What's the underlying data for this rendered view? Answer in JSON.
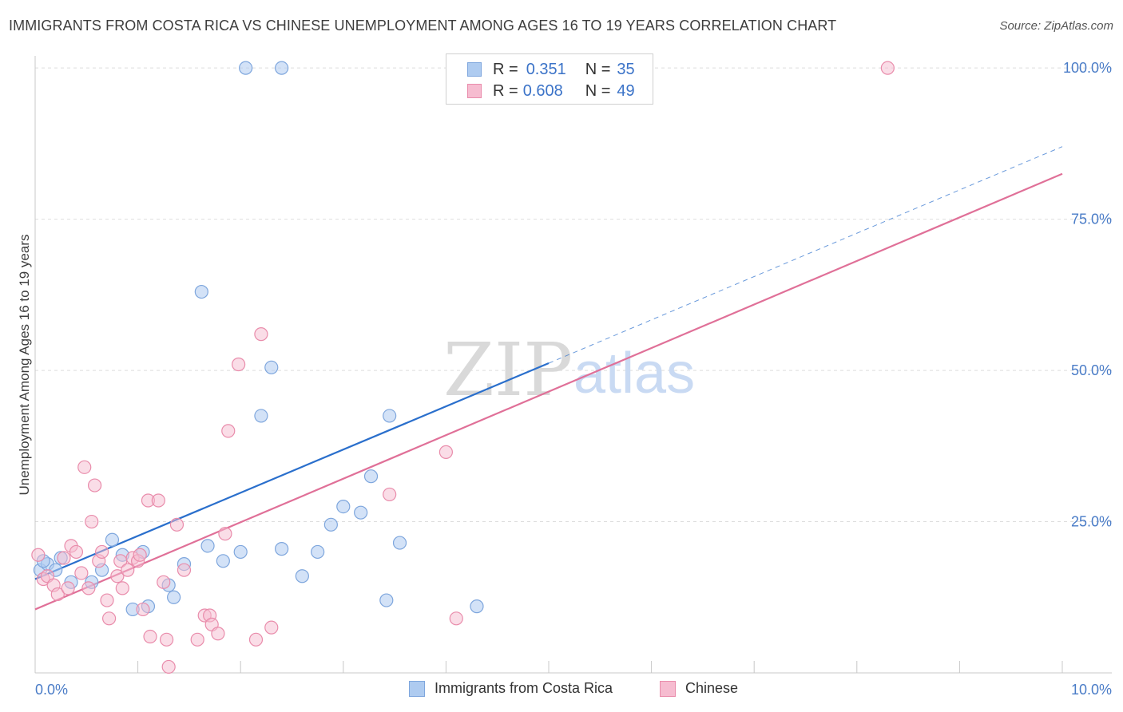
{
  "title": "IMMIGRANTS FROM COSTA RICA VS CHINESE UNEMPLOYMENT AMONG AGES 16 TO 19 YEARS CORRELATION CHART",
  "source": "Source: ZipAtlas.com",
  "watermark": {
    "zip": "ZIP",
    "atlas": "atlas"
  },
  "legend": {
    "rows": [
      {
        "r_label": "R =",
        "r_value": "0.351",
        "n_label": "N =",
        "n_value": "35"
      },
      {
        "r_label": "R =",
        "r_value": "0.608",
        "n_label": "N =",
        "n_value": "49"
      }
    ]
  },
  "bottom_legend": [
    "Immigrants from Costa Rica",
    "Chinese"
  ],
  "colors": {
    "blue_fill": "#aecbf0",
    "blue_stroke": "#7ea6dd",
    "blue_line": "#2a6fcc",
    "pink_fill": "#f6bcd0",
    "pink_stroke": "#e98cab",
    "pink_line": "#e07098",
    "grid": "#dddddd",
    "tick_text": "#4a7cc7"
  },
  "chart_data": {
    "type": "scatter",
    "title": "IMMIGRANTS FROM COSTA RICA VS CHINESE UNEMPLOYMENT AMONG AGES 16 TO 19 YEARS CORRELATION CHART",
    "xlabel": "",
    "ylabel": "Unemployment Among Ages 16 to 19 years",
    "xlim": [
      0,
      10
    ],
    "ylim": [
      0,
      102
    ],
    "x_tick_labels": [
      "0.0%",
      "10.0%"
    ],
    "y_ticks": [
      25,
      50,
      75,
      100
    ],
    "y_tick_labels": [
      "25.0%",
      "50.0%",
      "75.0%",
      "100.0%"
    ],
    "grid": true,
    "legend_position": "top-center",
    "series": [
      {
        "name": "Immigrants from Costa Rica",
        "r": 0.351,
        "n": 35,
        "points": [
          [
            0.05,
            17
          ],
          [
            0.12,
            18
          ],
          [
            0.2,
            17
          ],
          [
            0.25,
            19
          ],
          [
            0.35,
            15
          ],
          [
            0.55,
            15
          ],
          [
            0.65,
            17
          ],
          [
            0.75,
            22
          ],
          [
            0.85,
            19.5
          ],
          [
            0.95,
            10.5
          ],
          [
            1.05,
            20
          ],
          [
            1.1,
            11
          ],
          [
            1.3,
            14.5
          ],
          [
            1.35,
            12.5
          ],
          [
            1.45,
            18
          ],
          [
            1.62,
            63
          ],
          [
            1.68,
            21
          ],
          [
            1.83,
            18.5
          ],
          [
            2.0,
            20
          ],
          [
            2.05,
            100
          ],
          [
            2.2,
            42.5
          ],
          [
            2.3,
            50.5
          ],
          [
            2.4,
            100
          ],
          [
            2.4,
            20.5
          ],
          [
            2.6,
            16
          ],
          [
            2.75,
            20
          ],
          [
            2.88,
            24.5
          ],
          [
            3.0,
            27.5
          ],
          [
            3.17,
            26.5
          ],
          [
            3.27,
            32.5
          ],
          [
            3.42,
            12
          ],
          [
            3.45,
            42.5
          ],
          [
            3.55,
            21.5
          ],
          [
            4.3,
            11
          ],
          [
            0.08,
            18.5
          ]
        ],
        "trend": {
          "x0": 0,
          "y0": 15.5,
          "x1": 5,
          "y1": 51.2,
          "dash_to_x": 10,
          "dash_to_y": 87
        }
      },
      {
        "name": "Chinese",
        "r": 0.608,
        "n": 49,
        "points": [
          [
            0.03,
            19.5
          ],
          [
            0.08,
            15.5
          ],
          [
            0.12,
            16
          ],
          [
            0.18,
            14.5
          ],
          [
            0.22,
            13
          ],
          [
            0.28,
            19
          ],
          [
            0.32,
            14
          ],
          [
            0.35,
            21
          ],
          [
            0.4,
            20
          ],
          [
            0.45,
            16.5
          ],
          [
            0.48,
            34
          ],
          [
            0.52,
            14
          ],
          [
            0.55,
            25
          ],
          [
            0.58,
            31
          ],
          [
            0.62,
            18.5
          ],
          [
            0.65,
            20
          ],
          [
            0.7,
            12
          ],
          [
            0.72,
            9
          ],
          [
            0.8,
            16
          ],
          [
            0.83,
            18.5
          ],
          [
            0.85,
            14
          ],
          [
            0.9,
            17
          ],
          [
            0.95,
            19
          ],
          [
            1.0,
            18.5
          ],
          [
            1.02,
            19.5
          ],
          [
            1.05,
            10.5
          ],
          [
            1.1,
            28.5
          ],
          [
            1.12,
            6
          ],
          [
            1.2,
            28.5
          ],
          [
            1.25,
            15
          ],
          [
            1.28,
            5.5
          ],
          [
            1.3,
            1
          ],
          [
            1.38,
            24.5
          ],
          [
            1.45,
            17
          ],
          [
            1.58,
            5.5
          ],
          [
            1.65,
            9.5
          ],
          [
            1.7,
            9.5
          ],
          [
            1.72,
            8
          ],
          [
            1.78,
            6.5
          ],
          [
            1.85,
            23
          ],
          [
            1.88,
            40
          ],
          [
            1.98,
            51
          ],
          [
            2.15,
            5.5
          ],
          [
            2.2,
            56
          ],
          [
            2.3,
            7.5
          ],
          [
            3.45,
            29.5
          ],
          [
            4.0,
            36.5
          ],
          [
            4.1,
            9
          ],
          [
            8.3,
            100
          ]
        ],
        "trend": {
          "x0": 0,
          "y0": 10.5,
          "x1": 10,
          "y1": 82.5
        }
      }
    ]
  }
}
